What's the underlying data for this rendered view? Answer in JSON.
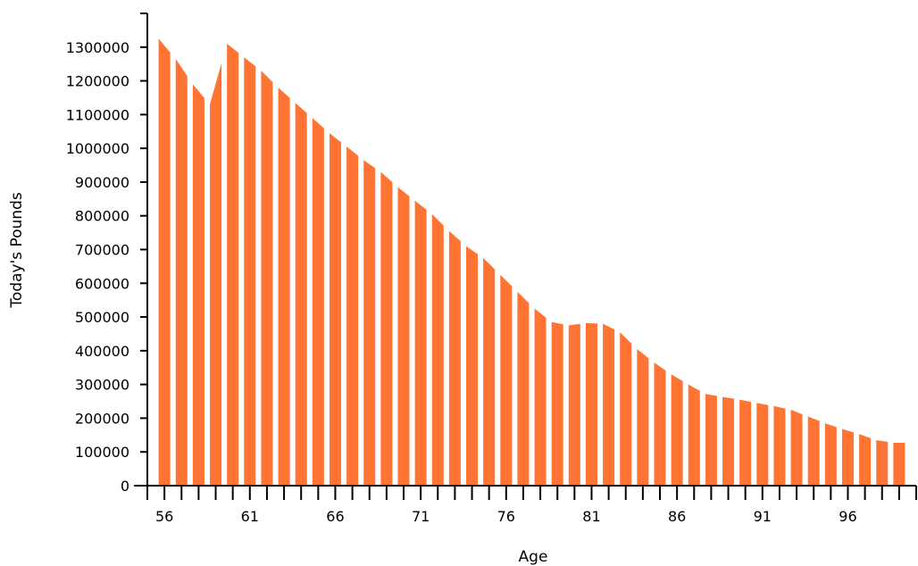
{
  "chart_data": {
    "type": "bar",
    "xlabel": "Age",
    "ylabel": "Today's Pounds",
    "ylim": [
      0,
      1400000
    ],
    "xlim": [
      55,
      100
    ],
    "y_ticks": [
      0,
      100000,
      200000,
      300000,
      400000,
      500000,
      600000,
      700000,
      800000,
      900000,
      1000000,
      1100000,
      1200000,
      1300000
    ],
    "x_tick_labels": [
      56,
      61,
      66,
      71,
      76,
      81,
      86,
      91,
      96
    ],
    "grid": false,
    "legend": "none",
    "bar_color": "#ff7433",
    "series": [
      {
        "x": [
          56,
          57,
          58,
          59,
          60,
          61,
          62,
          63,
          64,
          65,
          66,
          67,
          68,
          69,
          70,
          71,
          72,
          73,
          74,
          75,
          76,
          77,
          78,
          79,
          80,
          81,
          82,
          83,
          84,
          85,
          86,
          87,
          88,
          89,
          90,
          91,
          92,
          93,
          94,
          95,
          96,
          97,
          98,
          99
        ],
        "values": [
          1325000,
          1265000,
          1190000,
          1130000,
          1310000,
          1270000,
          1230000,
          1180000,
          1135000,
          1090000,
          1045000,
          1005000,
          965000,
          930000,
          885000,
          845000,
          805000,
          755000,
          710000,
          675000,
          625000,
          575000,
          525000,
          485000,
          475000,
          482000,
          480000,
          455000,
          405000,
          365000,
          330000,
          300000,
          272000,
          263000,
          255000,
          245000,
          236000,
          225000,
          205000,
          185000,
          168000,
          153000,
          135000,
          127000
        ]
      }
    ]
  }
}
